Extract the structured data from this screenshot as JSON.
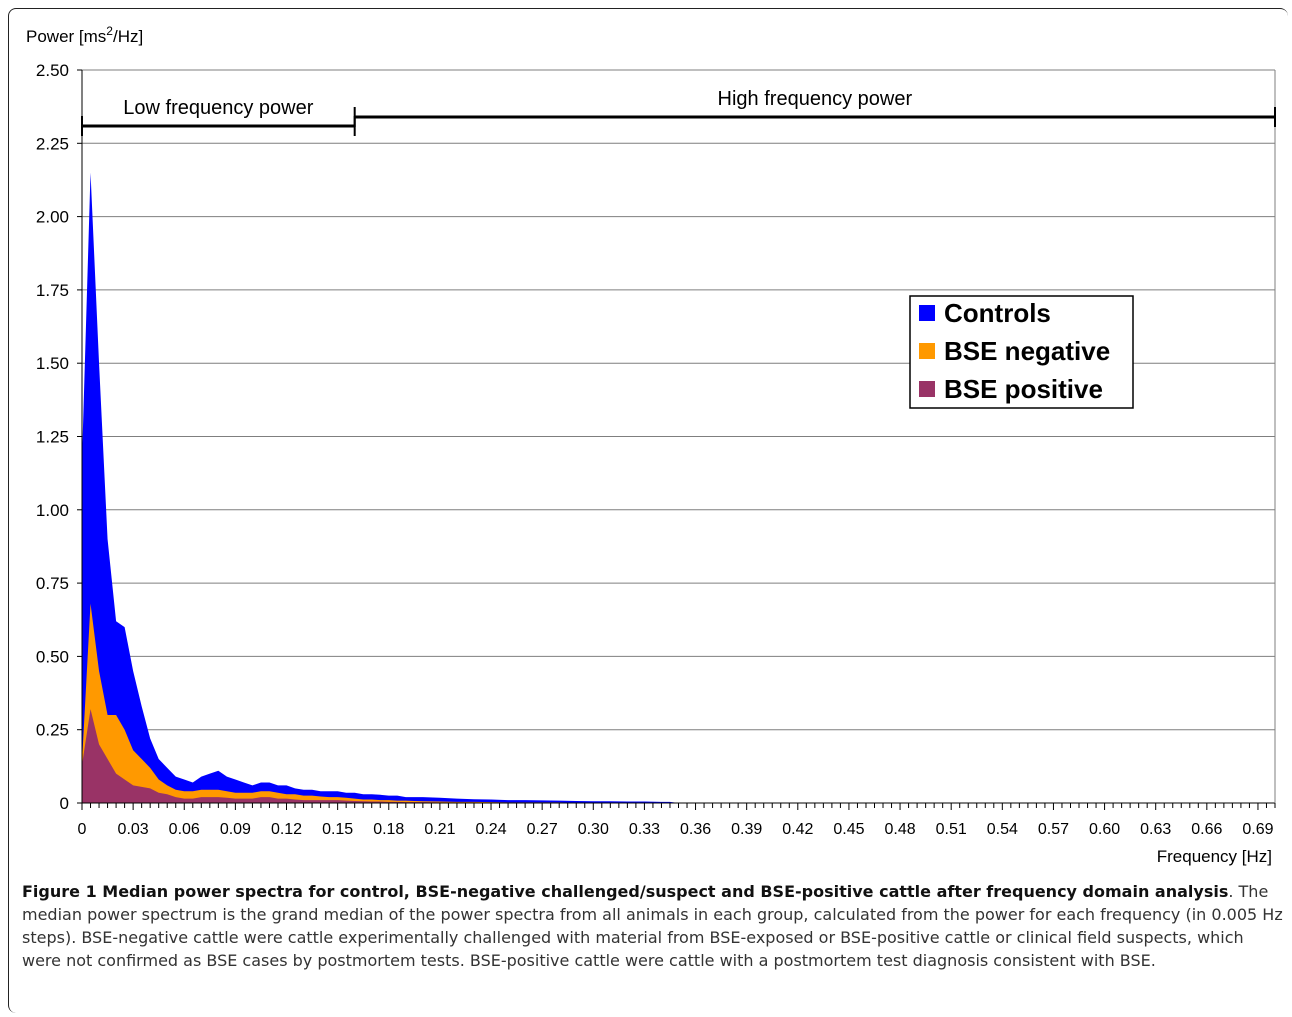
{
  "chart_data": {
    "type": "area",
    "ylabel_pre": "Power [ms",
    "ylabel_sup": "2",
    "ylabel_post": "/Hz]",
    "xlabel": "Frequency [Hz]",
    "ylim": [
      0,
      2.5
    ],
    "xlim": [
      0,
      0.7
    ],
    "yticks": [
      "2.50",
      "2.25",
      "2.00",
      "1.75",
      "1.50",
      "1.25",
      "1.00",
      "0.75",
      "0.50",
      "0.25",
      "0"
    ],
    "ytick_values": [
      2.5,
      2.25,
      2.0,
      1.75,
      1.5,
      1.25,
      1.0,
      0.75,
      0.5,
      0.25,
      0
    ],
    "xticks": [
      "0",
      "0.03",
      "0.06",
      "0.09",
      "0.12",
      "0.15",
      "0.18",
      "0.21",
      "0.24",
      "0.27",
      "0.30",
      "0.33",
      "0.36",
      "0.39",
      "0.42",
      "0.45",
      "0.48",
      "0.51",
      "0.54",
      "0.57",
      "0.60",
      "0.63",
      "0.66",
      "0.69"
    ],
    "xtick_values": [
      0,
      0.03,
      0.06,
      0.09,
      0.12,
      0.15,
      0.18,
      0.21,
      0.24,
      0.27,
      0.3,
      0.33,
      0.36,
      0.39,
      0.42,
      0.45,
      0.48,
      0.51,
      0.54,
      0.57,
      0.6,
      0.63,
      0.66,
      0.69
    ],
    "grid": true,
    "legend_position": "right",
    "bands": [
      {
        "label": "Low frequency power",
        "from": 0,
        "to": 0.16
      },
      {
        "label": "High frequency power",
        "from": 0.16,
        "to": 0.7
      }
    ],
    "x": [
      0,
      0.005,
      0.01,
      0.015,
      0.02,
      0.025,
      0.03,
      0.035,
      0.04,
      0.045,
      0.05,
      0.055,
      0.06,
      0.065,
      0.07,
      0.075,
      0.08,
      0.085,
      0.09,
      0.095,
      0.1,
      0.105,
      0.11,
      0.115,
      0.12,
      0.125,
      0.13,
      0.135,
      0.14,
      0.145,
      0.15,
      0.155,
      0.16,
      0.165,
      0.17,
      0.175,
      0.18,
      0.185,
      0.19,
      0.195,
      0.2,
      0.21,
      0.22,
      0.23,
      0.24,
      0.25,
      0.26,
      0.27,
      0.28,
      0.29,
      0.3,
      0.31,
      0.32,
      0.33,
      0.34,
      0.345,
      0.35
    ],
    "series": [
      {
        "name": "Controls",
        "color": "#0000ff",
        "values": [
          1.17,
          2.15,
          1.5,
          0.9,
          0.62,
          0.6,
          0.45,
          0.33,
          0.22,
          0.15,
          0.12,
          0.09,
          0.08,
          0.07,
          0.09,
          0.1,
          0.11,
          0.09,
          0.08,
          0.07,
          0.06,
          0.07,
          0.07,
          0.06,
          0.06,
          0.05,
          0.045,
          0.045,
          0.04,
          0.04,
          0.04,
          0.035,
          0.035,
          0.03,
          0.03,
          0.028,
          0.025,
          0.025,
          0.02,
          0.02,
          0.02,
          0.018,
          0.015,
          0.013,
          0.012,
          0.01,
          0.01,
          0.009,
          0.008,
          0.007,
          0.006,
          0.006,
          0.005,
          0.005,
          0.004,
          0.004,
          0
        ]
      },
      {
        "name": "BSE negative",
        "color": "#ff9900",
        "values": [
          0.14,
          0.68,
          0.45,
          0.3,
          0.3,
          0.25,
          0.18,
          0.15,
          0.12,
          0.08,
          0.06,
          0.045,
          0.04,
          0.04,
          0.045,
          0.045,
          0.045,
          0.04,
          0.035,
          0.035,
          0.035,
          0.04,
          0.04,
          0.035,
          0.03,
          0.03,
          0.025,
          0.025,
          0.022,
          0.02,
          0.02,
          0.018,
          0.015,
          0.012,
          0.012,
          0.01,
          0.01,
          0.008,
          0.008,
          0.007,
          0.006,
          0.005,
          0.004,
          0.004,
          0.003,
          0.002,
          0.002,
          0.002,
          0.002,
          0.001,
          0.001,
          0.001,
          0.001,
          0.001,
          0.001,
          0.001,
          0
        ]
      },
      {
        "name": "BSE positive",
        "color": "#993366",
        "values": [
          0.13,
          0.32,
          0.2,
          0.15,
          0.1,
          0.08,
          0.06,
          0.055,
          0.05,
          0.035,
          0.03,
          0.02,
          0.015,
          0.015,
          0.02,
          0.02,
          0.02,
          0.018,
          0.015,
          0.015,
          0.015,
          0.02,
          0.02,
          0.015,
          0.015,
          0.012,
          0.01,
          0.01,
          0.01,
          0.01,
          0.01,
          0.008,
          0.007,
          0.006,
          0.005,
          0.005,
          0.004,
          0.004,
          0.003,
          0.003,
          0.003,
          0.002,
          0.002,
          0.002,
          0.001,
          0.001,
          0.001,
          0.001,
          0.001,
          0.001,
          0.001,
          0,
          0,
          0,
          0,
          0,
          0
        ]
      }
    ]
  },
  "caption": {
    "title": "Figure 1 Median power spectra for control, BSE-negative challenged/suspect and BSE-positive cattle after frequency domain analysis",
    "title_end": ".",
    "body": "The median power spectrum is the grand median of the power spectra from all animals in each group, calculated from the power for each frequency (in 0.005 Hz steps). BSE-negative cattle were cattle experimentally challenged with material from BSE-exposed or BSE-positive cattle or clinical field suspects, which were not confirmed as BSE cases by postmortem tests. BSE-positive cattle were cattle with a postmortem test diagnosis consistent with BSE."
  }
}
